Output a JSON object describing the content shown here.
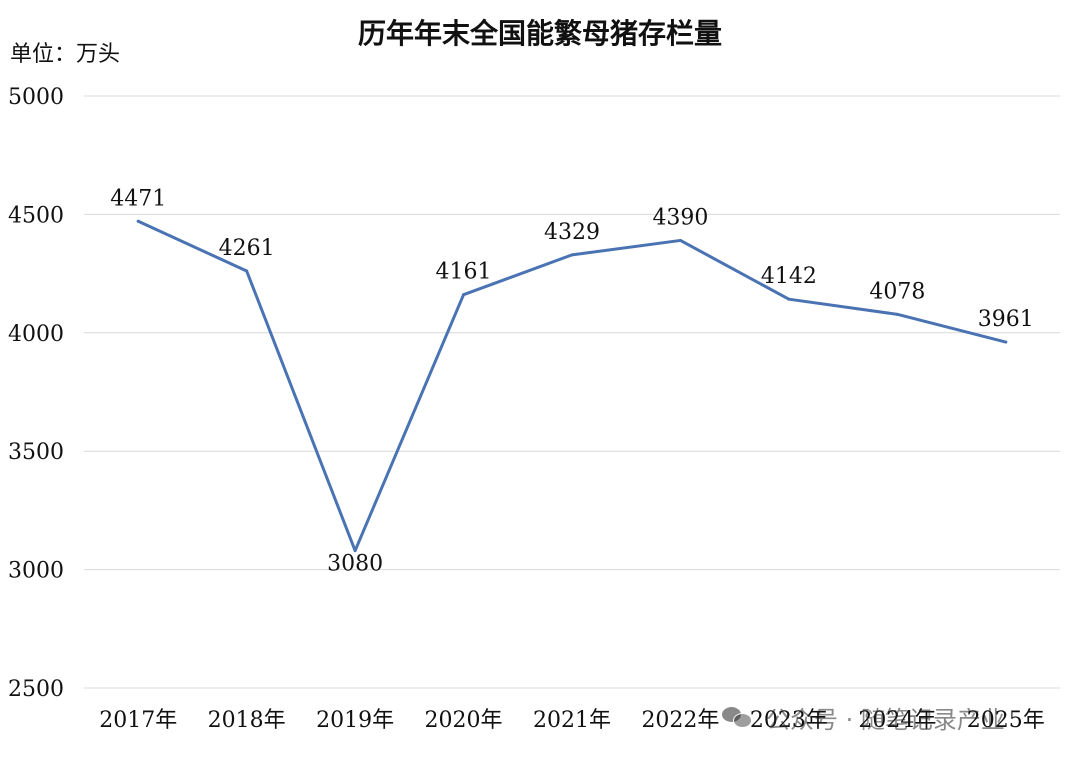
{
  "chart_data": {
    "type": "line",
    "title": "历年年末全国能繁母猪存栏量",
    "unit_label": "单位：万头",
    "categories": [
      "2017年",
      "2018年",
      "2019年",
      "2020年",
      "2021年",
      "2022年",
      "2023年",
      "2024年",
      "2025年"
    ],
    "series": [
      {
        "values": [
          4471,
          4261,
          3080,
          4161,
          4329,
          4390,
          4142,
          4078,
          3961
        ],
        "color": "#4a73b3"
      }
    ],
    "ylim": [
      2500,
      5000
    ],
    "yticks": [
      2500,
      3000,
      3500,
      4000,
      4500,
      5000
    ],
    "grid": true,
    "data_labels": true
  },
  "watermark": {
    "icon": "wechat-icon",
    "text": "公众号 · 随笔记录产业"
  }
}
